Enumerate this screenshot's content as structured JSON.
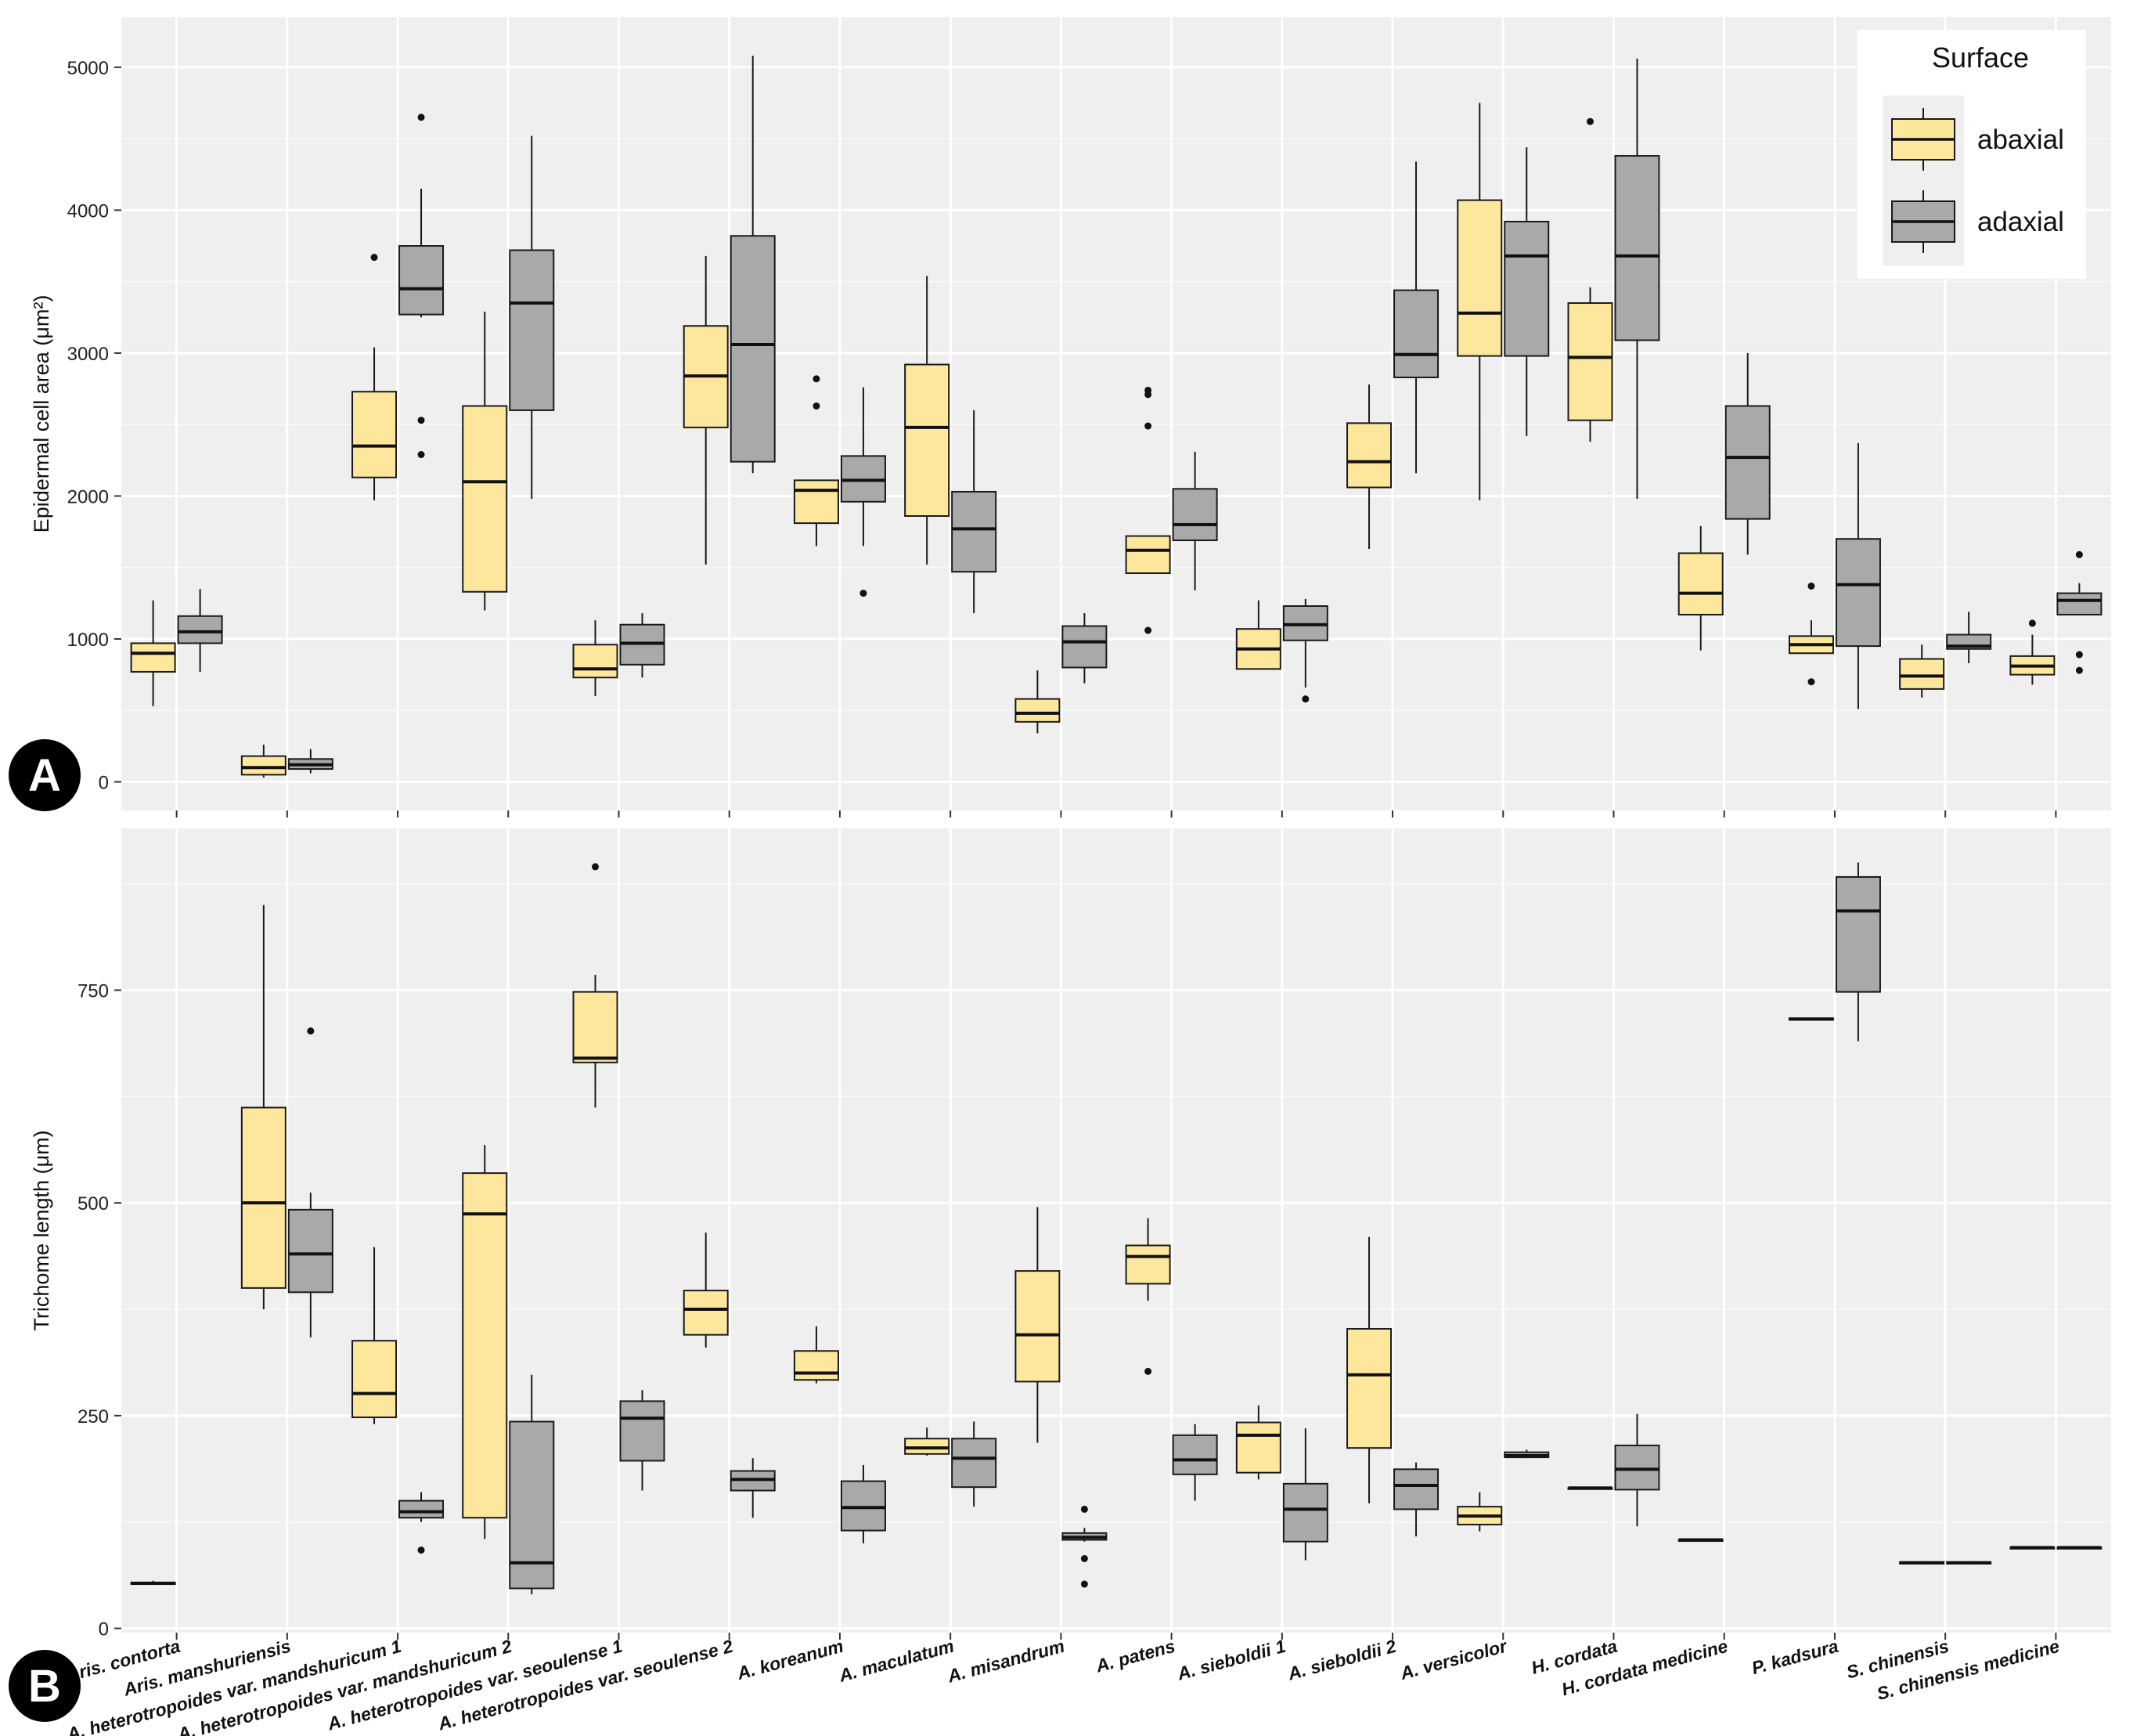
{
  "chart_data": {
    "type": "boxplot",
    "categories": [
      "Aris. contorta",
      "Aris. manshuriensis",
      "A. heterotropoides var. mandshuricum 1",
      "A. heterotropoides var. mandshuricum 2",
      "A. heterotropoides var. seoulense 1",
      "A. heterotropoides var. seoulense 2",
      "A. koreanum",
      "A. maculatum",
      "A. misandrum",
      "A. patens",
      "A. sieboldii 1",
      "A. sieboldii 2",
      "A. versicolor",
      "H. cordata",
      "H. cordata medicine",
      "P. kadsura",
      "S. chinensis",
      "S. chinensis medicine"
    ],
    "legend": {
      "title": "Surface",
      "position": "top-right",
      "entries": [
        {
          "name": "abaxial",
          "color": "#fde79c"
        },
        {
          "name": "adaxial",
          "color": "#a9a9a9"
        }
      ]
    },
    "panel_label_fill": "#000000",
    "panel_bg": "#efefef",
    "panels": [
      {
        "label": "A",
        "ylabel": "Epidermal cell area (μm²)",
        "ylim": [
          -200,
          5350
        ],
        "yticks": [
          0,
          1000,
          2000,
          3000,
          4000,
          5000
        ],
        "series": [
          {
            "name": "abaxial",
            "boxes": [
              {
                "wl": 530,
                "q1": 770,
                "med": 900,
                "q3": 970,
                "wh": 1270,
                "out": []
              },
              {
                "wl": 30,
                "q1": 50,
                "med": 100,
                "q3": 180,
                "wh": 260,
                "out": []
              },
              {
                "wl": 1970,
                "q1": 2130,
                "med": 2350,
                "q3": 2730,
                "wh": 3040,
                "out": [
                  3670
                ]
              },
              {
                "wl": 1200,
                "q1": 1330,
                "med": 2100,
                "q3": 2630,
                "wh": 3290,
                "out": []
              },
              {
                "wl": 600,
                "q1": 730,
                "med": 790,
                "q3": 960,
                "wh": 1130,
                "out": []
              },
              {
                "wl": 1520,
                "q1": 2480,
                "med": 2840,
                "q3": 3190,
                "wh": 3680,
                "out": []
              },
              {
                "wl": 1650,
                "q1": 1810,
                "med": 2040,
                "q3": 2110,
                "wh": 2110,
                "out": [
                  2630,
                  2820
                ]
              },
              {
                "wl": 1520,
                "q1": 1860,
                "med": 2480,
                "q3": 2920,
                "wh": 3540,
                "out": []
              },
              {
                "wl": 340,
                "q1": 420,
                "med": 480,
                "q3": 580,
                "wh": 780,
                "out": []
              },
              {
                "wl": 1460,
                "q1": 1460,
                "med": 1620,
                "q3": 1720,
                "wh": 1720,
                "out": [
                  1060,
                  2490,
                  2710,
                  2740
                ]
              },
              {
                "wl": 790,
                "q1": 790,
                "med": 930,
                "q3": 1070,
                "wh": 1270,
                "out": []
              },
              {
                "wl": 1630,
                "q1": 2060,
                "med": 2240,
                "q3": 2510,
                "wh": 2780,
                "out": []
              },
              {
                "wl": 1970,
                "q1": 2980,
                "med": 3280,
                "q3": 4070,
                "wh": 4750,
                "out": []
              },
              {
                "wl": 2380,
                "q1": 2530,
                "med": 2970,
                "q3": 3350,
                "wh": 3460,
                "out": [
                  4620
                ]
              },
              {
                "wl": 920,
                "q1": 1170,
                "med": 1320,
                "q3": 1600,
                "wh": 1790,
                "out": []
              },
              {
                "wl": 900,
                "q1": 900,
                "med": 960,
                "q3": 1020,
                "wh": 1130,
                "out": [
                  700,
                  1370
                ]
              },
              {
                "wl": 590,
                "q1": 650,
                "med": 740,
                "q3": 860,
                "wh": 960,
                "out": []
              },
              {
                "wl": 680,
                "q1": 750,
                "med": 810,
                "q3": 880,
                "wh": 1030,
                "out": [
                  1110
                ]
              }
            ]
          },
          {
            "name": "adaxial",
            "boxes": [
              {
                "wl": 770,
                "q1": 970,
                "med": 1050,
                "q3": 1160,
                "wh": 1350,
                "out": []
              },
              {
                "wl": 60,
                "q1": 90,
                "med": 120,
                "q3": 160,
                "wh": 230,
                "out": []
              },
              {
                "wl": 3250,
                "q1": 3270,
                "med": 3450,
                "q3": 3750,
                "wh": 4150,
                "out": [
                  2290,
                  2530,
                  4650
                ]
              },
              {
                "wl": 1980,
                "q1": 2600,
                "med": 3350,
                "q3": 3720,
                "wh": 4520,
                "out": []
              },
              {
                "wl": 730,
                "q1": 820,
                "med": 970,
                "q3": 1100,
                "wh": 1180,
                "out": []
              },
              {
                "wl": 2160,
                "q1": 2240,
                "med": 3060,
                "q3": 3820,
                "wh": 5080,
                "out": []
              },
              {
                "wl": 1650,
                "q1": 1960,
                "med": 2110,
                "q3": 2280,
                "wh": 2760,
                "out": [
                  1320
                ]
              },
              {
                "wl": 1180,
                "q1": 1470,
                "med": 1770,
                "q3": 2030,
                "wh": 2600,
                "out": []
              },
              {
                "wl": 690,
                "q1": 800,
                "med": 980,
                "q3": 1090,
                "wh": 1180,
                "out": []
              },
              {
                "wl": 1340,
                "q1": 1690,
                "med": 1800,
                "q3": 2050,
                "wh": 2310,
                "out": []
              },
              {
                "wl": 660,
                "q1": 990,
                "med": 1100,
                "q3": 1230,
                "wh": 1280,
                "out": [
                  580
                ]
              },
              {
                "wl": 2160,
                "q1": 2830,
                "med": 2990,
                "q3": 3440,
                "wh": 4340,
                "out": []
              },
              {
                "wl": 2420,
                "q1": 2980,
                "med": 3680,
                "q3": 3920,
                "wh": 4440,
                "out": []
              },
              {
                "wl": 1980,
                "q1": 3090,
                "med": 3680,
                "q3": 4380,
                "wh": 5060,
                "out": []
              },
              {
                "wl": 1590,
                "q1": 1840,
                "med": 2270,
                "q3": 2630,
                "wh": 3000,
                "out": []
              },
              {
                "wl": 510,
                "q1": 950,
                "med": 1380,
                "q3": 1700,
                "wh": 2370,
                "out": []
              },
              {
                "wl": 830,
                "q1": 930,
                "med": 950,
                "q3": 1030,
                "wh": 1190,
                "out": []
              },
              {
                "wl": 1170,
                "q1": 1170,
                "med": 1270,
                "q3": 1320,
                "wh": 1390,
                "out": [
                  780,
                  890,
                  1590
                ]
              }
            ]
          }
        ]
      },
      {
        "label": "B",
        "ylabel": "Trichome length (μm)",
        "ylim": [
          -5,
          940
        ],
        "yticks": [
          0,
          250,
          500,
          750
        ],
        "series": [
          {
            "name": "abaxial",
            "boxes": [
              {
                "wl": 52,
                "q1": 52,
                "med": 53,
                "q3": 54,
                "wh": 56,
                "out": []
              },
              {
                "wl": 375,
                "q1": 400,
                "med": 500,
                "q3": 612,
                "wh": 850,
                "out": []
              },
              {
                "wl": 240,
                "q1": 248,
                "med": 276,
                "q3": 338,
                "wh": 448,
                "out": []
              },
              {
                "wl": 105,
                "q1": 130,
                "med": 487,
                "q3": 535,
                "wh": 568,
                "out": []
              },
              {
                "wl": 612,
                "q1": 665,
                "med": 670,
                "q3": 748,
                "wh": 768,
                "out": [
                  895
                ]
              },
              {
                "wl": 330,
                "q1": 345,
                "med": 375,
                "q3": 397,
                "wh": 465,
                "out": []
              },
              {
                "wl": 288,
                "q1": 292,
                "med": 300,
                "q3": 326,
                "wh": 355,
                "out": []
              },
              {
                "wl": 203,
                "q1": 205,
                "med": 212,
                "q3": 223,
                "wh": 236,
                "out": []
              },
              {
                "wl": 218,
                "q1": 290,
                "med": 345,
                "q3": 420,
                "wh": 495,
                "out": []
              },
              {
                "wl": 385,
                "q1": 405,
                "med": 437,
                "q3": 450,
                "wh": 482,
                "out": [
                  302
                ]
              },
              {
                "wl": 175,
                "q1": 183,
                "med": 227,
                "q3": 242,
                "wh": 262,
                "out": []
              },
              {
                "wl": 147,
                "q1": 212,
                "med": 298,
                "q3": 352,
                "wh": 460,
                "out": []
              },
              {
                "wl": 114,
                "q1": 122,
                "med": 132,
                "q3": 143,
                "wh": 160,
                "out": []
              },
              {
                "wl": 165,
                "q1": 165,
                "med": 165,
                "q3": 165,
                "wh": 165,
                "out": []
              },
              {
                "wl": 103,
                "q1": 103,
                "med": 104,
                "q3": 104,
                "wh": 104,
                "out": []
              },
              {
                "wl": 715,
                "q1": 715,
                "med": 716,
                "q3": 717,
                "wh": 717,
                "out": []
              },
              {
                "wl": 76,
                "q1": 76,
                "med": 77,
                "q3": 78,
                "wh": 79,
                "out": []
              },
              {
                "wl": 94,
                "q1": 94,
                "med": 95,
                "q3": 95,
                "wh": 95,
                "out": []
              }
            ]
          },
          {
            "name": "adaxial",
            "boxes": [
              {
                "wl": 0,
                "q1": 0,
                "med": 0,
                "q3": 0,
                "wh": 0,
                "out": []
              },
              {
                "wl": 342,
                "q1": 395,
                "med": 440,
                "q3": 492,
                "wh": 512,
                "out": [
                  702
                ]
              },
              {
                "wl": 125,
                "q1": 130,
                "med": 137,
                "q3": 150,
                "wh": 160,
                "out": [
                  92
                ]
              },
              {
                "wl": 40,
                "q1": 47,
                "med": 77,
                "q3": 243,
                "wh": 298,
                "out": []
              },
              {
                "wl": 162,
                "q1": 197,
                "med": 247,
                "q3": 267,
                "wh": 280,
                "out": []
              },
              {
                "wl": 130,
                "q1": 162,
                "med": 175,
                "q3": 185,
                "wh": 200,
                "out": []
              },
              {
                "wl": 100,
                "q1": 115,
                "med": 142,
                "q3": 173,
                "wh": 192,
                "out": []
              },
              {
                "wl": 143,
                "q1": 166,
                "med": 200,
                "q3": 223,
                "wh": 243,
                "out": []
              },
              {
                "wl": 102,
                "q1": 104,
                "med": 107,
                "q3": 112,
                "wh": 118,
                "out": [
                  52,
                  82,
                  140
                ]
              },
              {
                "wl": 150,
                "q1": 181,
                "med": 198,
                "q3": 227,
                "wh": 240,
                "out": []
              },
              {
                "wl": 80,
                "q1": 102,
                "med": 140,
                "q3": 170,
                "wh": 235,
                "out": []
              },
              {
                "wl": 108,
                "q1": 140,
                "med": 168,
                "q3": 187,
                "wh": 195,
                "out": []
              },
              {
                "wl": 200,
                "q1": 201,
                "med": 203,
                "q3": 207,
                "wh": 210,
                "out": []
              },
              {
                "wl": 120,
                "q1": 163,
                "med": 187,
                "q3": 215,
                "wh": 252,
                "out": []
              },
              {
                "wl": 0,
                "q1": 0,
                "med": 0,
                "q3": 0,
                "wh": 0,
                "out": []
              },
              {
                "wl": 690,
                "q1": 748,
                "med": 843,
                "q3": 883,
                "wh": 900,
                "out": []
              },
              {
                "wl": 76,
                "q1": 76,
                "med": 77,
                "q3": 78,
                "wh": 79,
                "out": []
              },
              {
                "wl": 94,
                "q1": 94,
                "med": 95,
                "q3": 95,
                "wh": 95,
                "out": []
              }
            ]
          }
        ]
      }
    ]
  }
}
